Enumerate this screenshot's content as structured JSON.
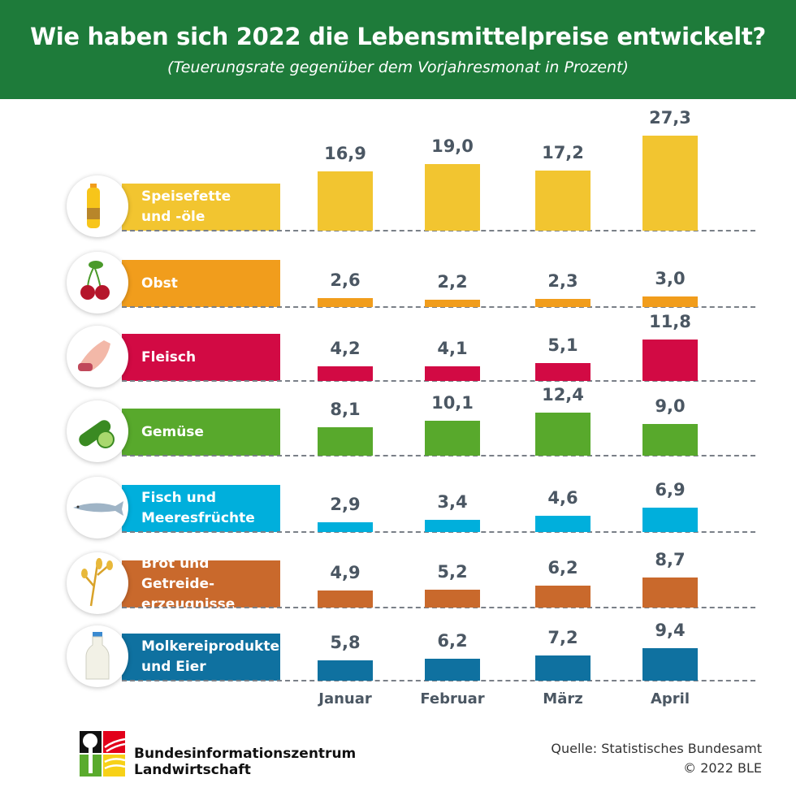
{
  "header": {
    "title": "Wie haben sich 2022 die Lebensmittelpreise entwickelt?",
    "subtitle": "(Teuerungsrate gegenüber dem Vorjahresmonat in Prozent)"
  },
  "chart_data": {
    "type": "bar",
    "title": "Wie haben sich 2022 die Lebensmittelpreise entwickelt?",
    "subtitle": "(Teuerungsrate gegenüber dem Vorjahresmonat in Prozent)",
    "categories": [
      "Januar",
      "Februar",
      "März",
      "April"
    ],
    "series": [
      {
        "name": "Speisefette\nund -öle",
        "color": "#f2c530",
        "icon": "oil-bottle",
        "values": [
          16.9,
          19.0,
          17.2,
          27.3
        ],
        "labels": [
          "16,9",
          "19,0",
          "17,2",
          "27,3"
        ]
      },
      {
        "name": "Obst",
        "color": "#f19d1c",
        "icon": "cherries",
        "values": [
          2.6,
          2.2,
          2.3,
          3.0
        ],
        "labels": [
          "2,6",
          "2,2",
          "2,3",
          "3,0"
        ]
      },
      {
        "name": "Fleisch",
        "color": "#d20a44",
        "icon": "meat",
        "values": [
          4.2,
          4.1,
          5.1,
          11.8
        ],
        "labels": [
          "4,2",
          "4,1",
          "5,1",
          "11,8"
        ]
      },
      {
        "name": "Gemüse",
        "color": "#58a92c",
        "icon": "cucumber",
        "values": [
          8.1,
          10.1,
          12.4,
          9.0
        ],
        "labels": [
          "8,1",
          "10,1",
          "12,4",
          "9,0"
        ]
      },
      {
        "name": "Fisch und\nMeeresfrüchte",
        "color": "#00afdc",
        "icon": "fish",
        "values": [
          2.9,
          3.4,
          4.6,
          6.9
        ],
        "labels": [
          "2,9",
          "3,4",
          "4,6",
          "6,9"
        ]
      },
      {
        "name": "Brot und Getreide-\nerzeugnisse",
        "color": "#c9692c",
        "icon": "grain",
        "values": [
          4.9,
          5.2,
          6.2,
          8.7
        ],
        "labels": [
          "4,9",
          "5,2",
          "6,2",
          "8,7"
        ]
      },
      {
        "name": "Molkereiprodukte\nund Eier",
        "color": "#0f71a0",
        "icon": "milk-bottle",
        "values": [
          5.8,
          6.2,
          7.2,
          9.4
        ],
        "labels": [
          "5,8",
          "6,2",
          "7,2",
          "9,4"
        ]
      }
    ]
  },
  "footer": {
    "org_line1": "Bundesinformationszentrum",
    "org_line2": "Landwirtschaft",
    "source": "Quelle: Statistisches Bundesamt",
    "copyright": "© 2022 BLE"
  }
}
